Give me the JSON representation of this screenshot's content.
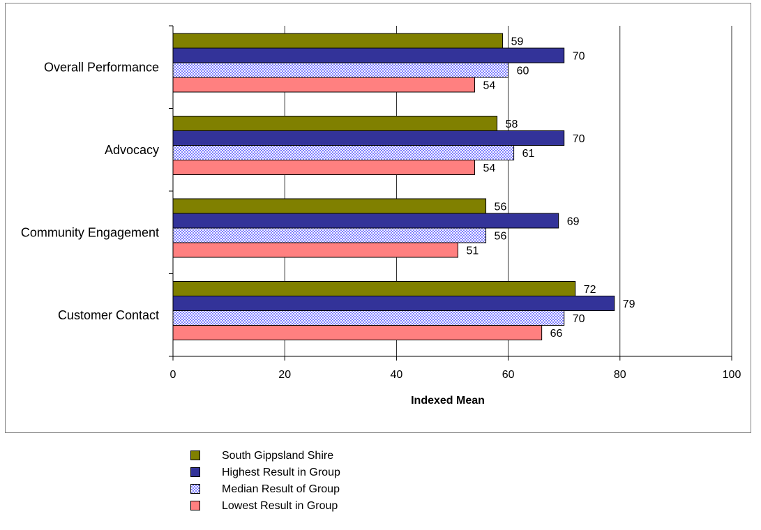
{
  "chart_data": {
    "type": "bar",
    "orientation": "horizontal",
    "categories": [
      "Overall Performance",
      "Advocacy",
      "Community Engagement",
      "Customer Contact"
    ],
    "series": [
      {
        "name": "South Gippsland Shire",
        "values": [
          59,
          58,
          56,
          72
        ],
        "color": "#808000",
        "pattern": "solid"
      },
      {
        "name": "Highest Result in Group",
        "values": [
          70,
          70,
          69,
          79
        ],
        "color": "#333399",
        "pattern": "solid"
      },
      {
        "name": "Median Result of Group",
        "values": [
          60,
          61,
          56,
          70
        ],
        "color": "#9999ff",
        "pattern": "checker"
      },
      {
        "name": "Lowest Result in Group",
        "values": [
          54,
          54,
          51,
          66
        ],
        "color": "#ff8080",
        "pattern": "solid"
      }
    ],
    "xlabel": "Indexed Mean",
    "ylabel": "",
    "xlim": [
      0,
      100
    ],
    "xticks": [
      "0",
      "20",
      "40",
      "60",
      "80",
      "100"
    ],
    "grid": true,
    "legend_position": "bottom"
  }
}
